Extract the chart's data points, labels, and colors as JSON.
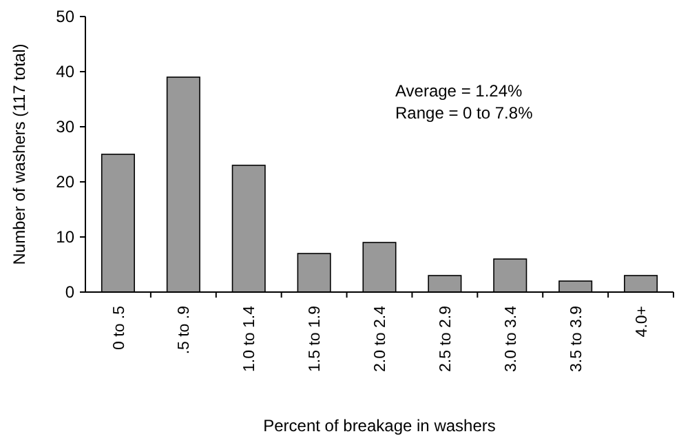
{
  "chart_data": {
    "type": "bar",
    "xlabel": "Percent of breakage in washers",
    "ylabel": "Number of washers (117 total)",
    "categories": [
      "0 to .5",
      ".5 to .9",
      "1.0 to 1.4",
      "1.5 to 1.9",
      "2.0 to 2.4",
      "2.5 to 2.9",
      "3.0 to 3.4",
      "3.5 to 3.9",
      "4.0+"
    ],
    "values": [
      25,
      39,
      23,
      7,
      9,
      3,
      6,
      2,
      3
    ],
    "color": "#999999",
    "ylim": [
      0,
      50
    ],
    "yticks": [
      0,
      10,
      20,
      30,
      40,
      50
    ],
    "annotations": [
      "Average = 1.24%",
      "Range = 0 to 7.8%"
    ]
  }
}
